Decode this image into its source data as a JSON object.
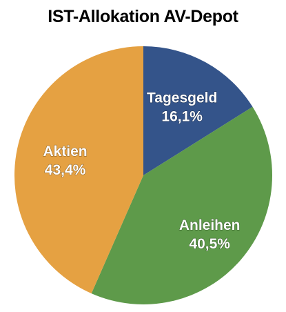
{
  "chart_data": {
    "type": "pie",
    "title": "IST-Allokation AV-Depot",
    "slices": [
      {
        "label": "Tagesgeld",
        "value": 16.1,
        "display": "16,1%",
        "color": "#34548a"
      },
      {
        "label": "Anleihen",
        "value": 40.5,
        "display": "40,5%",
        "color": "#5e9a4a"
      },
      {
        "label": "Aktien",
        "value": 43.4,
        "display": "43,4%",
        "color": "#e5a142"
      }
    ],
    "start_angle_deg": 0,
    "direction": "clockwise",
    "legend": "none"
  }
}
